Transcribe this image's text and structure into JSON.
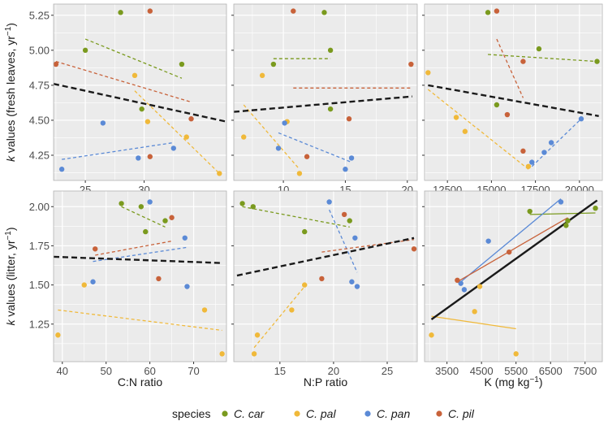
{
  "colors": {
    "C. car": "#7a9a1e",
    "C. pal": "#f0b93a",
    "C. pan": "#5b8ad6",
    "C. pil": "#c8623a",
    "overall": "#1a1a1a",
    "panel_bg": "#ebebeb",
    "grid": "#ffffff",
    "border": "#b3b3b3"
  },
  "legend": {
    "title": "species",
    "entries": [
      "C. car",
      "C. pal",
      "C. pan",
      "C. pil"
    ]
  },
  "chart_data": [
    {
      "type": "scatter",
      "row": 0,
      "col": 0,
      "ylabel_prefix": "k",
      "ylabel_rest": " values (fresh leaves, yr",
      "ylabel_sup": "−1",
      "ylabel_end": ")",
      "xlabel": "",
      "xlim": [
        22.3,
        37.0
      ],
      "ylim": [
        4.07,
        5.33
      ],
      "xticks": [
        25,
        30
      ],
      "xtick_labels": [
        "25",
        "30"
      ],
      "yticks": [
        4.25,
        4.5,
        4.75,
        5.0,
        5.25
      ],
      "ytick_labels": [
        "4.25",
        "4.50",
        "4.75",
        "5.00",
        "5.25"
      ],
      "points": [
        {
          "s": "C. car",
          "x": 25.0,
          "y": 5.0
        },
        {
          "s": "C. car",
          "x": 28.0,
          "y": 5.27
        },
        {
          "s": "C. car",
          "x": 29.8,
          "y": 4.58
        },
        {
          "s": "C. car",
          "x": 33.2,
          "y": 4.9
        },
        {
          "s": "C. pal",
          "x": 29.2,
          "y": 4.82
        },
        {
          "s": "C. pal",
          "x": 30.3,
          "y": 4.49
        },
        {
          "s": "C. pal",
          "x": 33.6,
          "y": 4.38
        },
        {
          "s": "C. pal",
          "x": 36.4,
          "y": 4.12
        },
        {
          "s": "C. pan",
          "x": 23.0,
          "y": 4.15
        },
        {
          "s": "C. pan",
          "x": 26.5,
          "y": 4.48
        },
        {
          "s": "C. pan",
          "x": 29.5,
          "y": 4.23
        },
        {
          "s": "C. pan",
          "x": 32.5,
          "y": 4.3
        },
        {
          "s": "C. pil",
          "x": 22.5,
          "y": 4.9
        },
        {
          "s": "C. pil",
          "x": 30.5,
          "y": 5.28
        },
        {
          "s": "C. pil",
          "x": 30.5,
          "y": 4.24
        },
        {
          "s": "C. pil",
          "x": 34.0,
          "y": 4.51
        }
      ],
      "lines": [
        {
          "s": "C. car",
          "dash": true,
          "x1": 25.0,
          "y1": 5.08,
          "x2": 33.2,
          "y2": 4.8
        },
        {
          "s": "C. pal",
          "dash": true,
          "x1": 29.2,
          "y1": 4.71,
          "x2": 36.4,
          "y2": 4.12
        },
        {
          "s": "C. pan",
          "dash": true,
          "x1": 23.0,
          "y1": 4.22,
          "x2": 32.5,
          "y2": 4.34
        },
        {
          "s": "C. pil",
          "dash": true,
          "x1": 22.5,
          "y1": 4.92,
          "x2": 34.0,
          "y2": 4.63
        },
        {
          "s": "overall",
          "dash": true,
          "x1": 22.3,
          "y1": 4.76,
          "x2": 37.0,
          "y2": 4.49
        }
      ]
    },
    {
      "type": "scatter",
      "row": 0,
      "col": 1,
      "xlabel": "",
      "xlim": [
        6.0,
        20.8
      ],
      "ylim": [
        4.07,
        5.33
      ],
      "xticks": [
        10,
        15,
        20
      ],
      "xtick_labels": [
        "10",
        "15",
        "20"
      ],
      "yticks": [
        4.25,
        4.5,
        4.75,
        5.0,
        5.25
      ],
      "ytick_labels": [],
      "points": [
        {
          "s": "C. car",
          "x": 9.2,
          "y": 4.9
        },
        {
          "s": "C. car",
          "x": 13.3,
          "y": 5.27
        },
        {
          "s": "C. car",
          "x": 13.8,
          "y": 4.58
        },
        {
          "s": "C. car",
          "x": 13.8,
          "y": 5.0
        },
        {
          "s": "C. pal",
          "x": 6.8,
          "y": 4.38
        },
        {
          "s": "C. pal",
          "x": 8.3,
          "y": 4.82
        },
        {
          "s": "C. pal",
          "x": 10.3,
          "y": 4.49
        },
        {
          "s": "C. pal",
          "x": 11.3,
          "y": 4.12
        },
        {
          "s": "C. pan",
          "x": 9.6,
          "y": 4.3
        },
        {
          "s": "C. pan",
          "x": 10.1,
          "y": 4.48
        },
        {
          "s": "C. pan",
          "x": 15.0,
          "y": 4.15
        },
        {
          "s": "C. pan",
          "x": 15.5,
          "y": 4.23
        },
        {
          "s": "C. pil",
          "x": 10.8,
          "y": 5.28
        },
        {
          "s": "C. pil",
          "x": 11.9,
          "y": 4.24
        },
        {
          "s": "C. pil",
          "x": 15.3,
          "y": 4.51
        },
        {
          "s": "C. pil",
          "x": 20.3,
          "y": 4.9
        }
      ],
      "lines": [
        {
          "s": "C. car",
          "dash": true,
          "x1": 9.2,
          "y1": 4.94,
          "x2": 13.8,
          "y2": 4.94
        },
        {
          "s": "C. pal",
          "dash": true,
          "x1": 6.8,
          "y1": 4.61,
          "x2": 11.3,
          "y2": 4.15
        },
        {
          "s": "C. pan",
          "dash": true,
          "x1": 9.6,
          "y1": 4.41,
          "x2": 15.5,
          "y2": 4.2
        },
        {
          "s": "C. pil",
          "dash": true,
          "x1": 10.8,
          "y1": 4.73,
          "x2": 20.3,
          "y2": 4.73
        },
        {
          "s": "overall",
          "dash": true,
          "x1": 6.0,
          "y1": 4.56,
          "x2": 20.4,
          "y2": 4.67
        }
      ]
    },
    {
      "type": "scatter",
      "row": 0,
      "col": 2,
      "xlabel": "",
      "xlim": [
        11200,
        21300
      ],
      "ylim": [
        4.07,
        5.33
      ],
      "xticks": [
        12500,
        15000,
        17500,
        20000
      ],
      "xtick_labels": [
        "12500",
        "15000",
        "17500",
        "20000"
      ],
      "yticks": [
        4.25,
        4.5,
        4.75,
        5.0,
        5.25
      ],
      "ytick_labels": [],
      "points": [
        {
          "s": "C. car",
          "x": 14800,
          "y": 5.27
        },
        {
          "s": "C. car",
          "x": 15300,
          "y": 4.61
        },
        {
          "s": "C. car",
          "x": 17700,
          "y": 5.01
        },
        {
          "s": "C. car",
          "x": 21000,
          "y": 4.92
        },
        {
          "s": "C. pal",
          "x": 11400,
          "y": 4.84
        },
        {
          "s": "C. pal",
          "x": 13000,
          "y": 4.52
        },
        {
          "s": "C. pal",
          "x": 13500,
          "y": 4.42
        },
        {
          "s": "C. pal",
          "x": 17100,
          "y": 4.17
        },
        {
          "s": "C. pan",
          "x": 17300,
          "y": 4.2
        },
        {
          "s": "C. pan",
          "x": 18000,
          "y": 4.27
        },
        {
          "s": "C. pan",
          "x": 18400,
          "y": 4.34
        },
        {
          "s": "C. pan",
          "x": 20100,
          "y": 4.51
        },
        {
          "s": "C. pil",
          "x": 15300,
          "y": 5.28
        },
        {
          "s": "C. pil",
          "x": 15900,
          "y": 4.54
        },
        {
          "s": "C. pil",
          "x": 16800,
          "y": 4.92
        },
        {
          "s": "C. pil",
          "x": 16800,
          "y": 4.28
        }
      ],
      "lines": [
        {
          "s": "C. car",
          "dash": true,
          "x1": 14800,
          "y1": 4.97,
          "x2": 21000,
          "y2": 4.92
        },
        {
          "s": "C. pal",
          "dash": true,
          "x1": 11400,
          "y1": 4.72,
          "x2": 17100,
          "y2": 4.15
        },
        {
          "s": "C. pan",
          "dash": true,
          "x1": 17300,
          "y1": 4.17,
          "x2": 20100,
          "y2": 4.51
        },
        {
          "s": "C. pil",
          "dash": true,
          "x1": 15300,
          "y1": 5.08,
          "x2": 16800,
          "y2": 4.66
        },
        {
          "s": "overall",
          "dash": true,
          "x1": 11400,
          "y1": 4.75,
          "x2": 21100,
          "y2": 4.53
        }
      ]
    },
    {
      "type": "scatter",
      "row": 1,
      "col": 0,
      "ylabel_prefix": "k",
      "ylabel_rest": " values (litter, yr",
      "ylabel_sup": "−1",
      "ylabel_end": ")",
      "xlabel": "C:N ratio",
      "xlim": [
        38.0,
        77.5
      ],
      "ylim": [
        1.01,
        2.1
      ],
      "xticks": [
        40,
        50,
        60,
        70
      ],
      "xtick_labels": [
        "40",
        "50",
        "60",
        "70"
      ],
      "yticks": [
        1.25,
        1.5,
        1.75,
        2.0
      ],
      "ytick_labels": [
        "1.25",
        "1.50",
        "1.75",
        "2.00"
      ],
      "points": [
        {
          "s": "C. car",
          "x": 53.5,
          "y": 2.02
        },
        {
          "s": "C. car",
          "x": 58.0,
          "y": 2.0
        },
        {
          "s": "C. car",
          "x": 59.0,
          "y": 1.84
        },
        {
          "s": "C. car",
          "x": 63.5,
          "y": 1.91
        },
        {
          "s": "C. pal",
          "x": 39.0,
          "y": 1.18
        },
        {
          "s": "C. pal",
          "x": 45.0,
          "y": 1.5
        },
        {
          "s": "C. pal",
          "x": 72.5,
          "y": 1.34
        },
        {
          "s": "C. pal",
          "x": 76.5,
          "y": 1.06
        },
        {
          "s": "C. pan",
          "x": 47.0,
          "y": 1.52
        },
        {
          "s": "C. pan",
          "x": 60.0,
          "y": 2.03
        },
        {
          "s": "C. pan",
          "x": 68.0,
          "y": 1.8
        },
        {
          "s": "C. pan",
          "x": 68.5,
          "y": 1.49
        },
        {
          "s": "C. pil",
          "x": 47.5,
          "y": 1.73
        },
        {
          "s": "C. pil",
          "x": 62.0,
          "y": 1.54
        },
        {
          "s": "C. pil",
          "x": 65.0,
          "y": 1.93
        }
      ],
      "lines": [
        {
          "s": "C. car",
          "dash": true,
          "x1": 53.5,
          "y1": 2.0,
          "x2": 63.5,
          "y2": 1.87
        },
        {
          "s": "C. pal",
          "dash": true,
          "x1": 39.0,
          "y1": 1.34,
          "x2": 76.5,
          "y2": 1.21
        },
        {
          "s": "C. pan",
          "dash": true,
          "x1": 47.0,
          "y1": 1.65,
          "x2": 68.5,
          "y2": 1.74
        },
        {
          "s": "C. pil",
          "dash": true,
          "x1": 47.5,
          "y1": 1.69,
          "x2": 65.0,
          "y2": 1.78
        },
        {
          "s": "overall",
          "dash": true,
          "x1": 38.0,
          "y1": 1.68,
          "x2": 76.5,
          "y2": 1.64
        }
      ]
    },
    {
      "type": "scatter",
      "row": 1,
      "col": 1,
      "xlabel": "N:P ratio",
      "xlim": [
        10.7,
        27.8
      ],
      "ylim": [
        1.01,
        2.1
      ],
      "xticks": [
        15,
        20,
        25
      ],
      "xtick_labels": [
        "15",
        "20",
        "25"
      ],
      "yticks": [
        1.25,
        1.5,
        1.75,
        2.0
      ],
      "ytick_labels": [],
      "points": [
        {
          "s": "C. car",
          "x": 11.5,
          "y": 2.02
        },
        {
          "s": "C. car",
          "x": 12.5,
          "y": 2.0
        },
        {
          "s": "C. car",
          "x": 17.3,
          "y": 1.84
        },
        {
          "s": "C. car",
          "x": 21.5,
          "y": 1.91
        },
        {
          "s": "C. pal",
          "x": 12.6,
          "y": 1.06
        },
        {
          "s": "C. pal",
          "x": 12.9,
          "y": 1.18
        },
        {
          "s": "C. pal",
          "x": 16.1,
          "y": 1.34
        },
        {
          "s": "C. pal",
          "x": 17.3,
          "y": 1.5
        },
        {
          "s": "C. pan",
          "x": 19.6,
          "y": 2.03
        },
        {
          "s": "C. pan",
          "x": 21.7,
          "y": 1.52
        },
        {
          "s": "C. pan",
          "x": 22.0,
          "y": 1.8
        },
        {
          "s": "C. pan",
          "x": 22.2,
          "y": 1.49
        },
        {
          "s": "C. pil",
          "x": 18.9,
          "y": 1.54
        },
        {
          "s": "C. pil",
          "x": 21.0,
          "y": 1.95
        },
        {
          "s": "C. pil",
          "x": 27.5,
          "y": 1.73
        }
      ],
      "lines": [
        {
          "s": "C. car",
          "dash": true,
          "x1": 11.5,
          "y1": 2.0,
          "x2": 21.5,
          "y2": 1.87
        },
        {
          "s": "C. pal",
          "dash": true,
          "x1": 12.6,
          "y1": 1.1,
          "x2": 17.3,
          "y2": 1.49
        },
        {
          "s": "C. pan",
          "dash": true,
          "x1": 19.6,
          "y1": 1.98,
          "x2": 22.2,
          "y2": 1.58
        },
        {
          "s": "C. pil",
          "dash": true,
          "x1": 18.9,
          "y1": 1.71,
          "x2": 27.5,
          "y2": 1.79
        },
        {
          "s": "overall",
          "dash": true,
          "x1": 11.0,
          "y1": 1.56,
          "x2": 27.5,
          "y2": 1.8
        }
      ]
    },
    {
      "type": "scatter",
      "row": 1,
      "col": 2,
      "xlabel_prefix": "K (mg kg",
      "xlabel_sup": "−1",
      "xlabel_end": ")",
      "xlim": [
        2850,
        8000
      ],
      "ylim": [
        1.01,
        2.1
      ],
      "xticks": [
        3500,
        4500,
        5500,
        6500,
        7500
      ],
      "xtick_labels": [
        "3500",
        "4500",
        "5500",
        "6500",
        "7500"
      ],
      "yticks": [
        1.25,
        1.5,
        1.75,
        2.0
      ],
      "ytick_labels": [],
      "points": [
        {
          "s": "C. car",
          "x": 5900,
          "y": 1.97
        },
        {
          "s": "C. car",
          "x": 6950,
          "y": 1.88
        },
        {
          "s": "C. car",
          "x": 7800,
          "y": 1.99
        },
        {
          "s": "C. car",
          "x": 7000,
          "y": 1.91
        },
        {
          "s": "C. pal",
          "x": 3050,
          "y": 1.18
        },
        {
          "s": "C. pal",
          "x": 4300,
          "y": 1.33
        },
        {
          "s": "C. pal",
          "x": 4450,
          "y": 1.49
        },
        {
          "s": "C. pal",
          "x": 5500,
          "y": 1.06
        },
        {
          "s": "C. pan",
          "x": 3900,
          "y": 1.51
        },
        {
          "s": "C. pan",
          "x": 4000,
          "y": 1.47
        },
        {
          "s": "C. pan",
          "x": 4700,
          "y": 1.78
        },
        {
          "s": "C. pan",
          "x": 6800,
          "y": 2.03
        },
        {
          "s": "C. pil",
          "x": 3800,
          "y": 1.53
        },
        {
          "s": "C. pil",
          "x": 5300,
          "y": 1.71
        }
      ],
      "lines": [
        {
          "s": "C. car",
          "dash": false,
          "x1": 5900,
          "y1": 1.95,
          "x2": 7800,
          "y2": 1.96
        },
        {
          "s": "C. pal",
          "dash": false,
          "x1": 3050,
          "y1": 1.3,
          "x2": 5500,
          "y2": 1.22
        },
        {
          "s": "C. pan",
          "dash": false,
          "x1": 3900,
          "y1": 1.52,
          "x2": 6800,
          "y2": 2.05
        },
        {
          "s": "C. pil",
          "dash": false,
          "x1": 3800,
          "y1": 1.52,
          "x2": 7000,
          "y2": 1.93
        },
        {
          "s": "overall",
          "dash": false,
          "x1": 3050,
          "y1": 1.28,
          "x2": 7850,
          "y2": 2.04
        }
      ]
    }
  ]
}
